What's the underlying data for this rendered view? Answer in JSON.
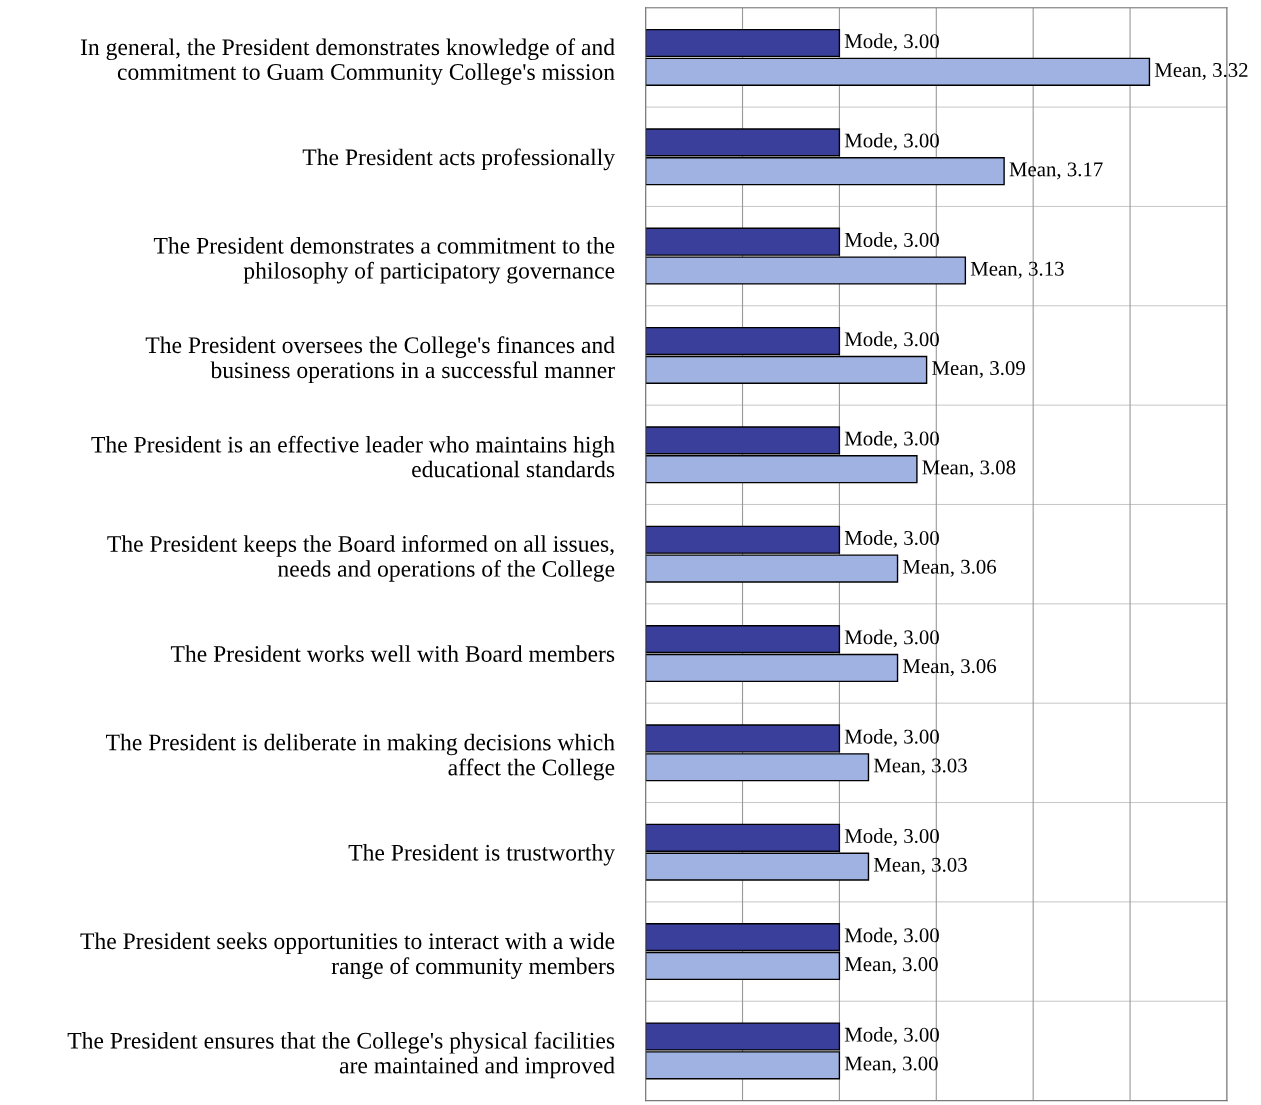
{
  "chart_data": {
    "type": "bar",
    "orientation": "horizontal",
    "categories": [
      "In general, the President demonstrates knowledge of and\ncommitment to Guam Community College's mission",
      "The President acts professionally",
      "The President demonstrates a commitment to the\nphilosophy of participatory governance",
      "The President oversees the College's finances and\nbusiness operations in a successful manner",
      "The President is an effective leader who maintains high\neducational standards",
      "The President keeps the Board informed on all issues,\nneeds and operations of the College",
      "The President works well with Board members",
      "The President is deliberate in making decisions which\naffect the College",
      "The President is trustworthy",
      "The President seeks opportunities to interact with a wide\nrange of community members",
      "The President ensures that the College's physical facilities\nare maintained and improved"
    ],
    "series": [
      {
        "color": "#3a3f9c",
        "values": [
          3.0,
          3.0,
          3.0,
          3.0,
          3.0,
          3.0,
          3.0,
          3.0,
          3.0,
          3.0,
          3.0
        ],
        "value_labels": [
          "Mode, 3.00",
          "Mode, 3.00",
          "Mode, 3.00",
          "Mode, 3.00",
          "Mode, 3.00",
          "Mode, 3.00",
          "Mode, 3.00",
          "Mode, 3.00",
          "Mode, 3.00",
          "Mode, 3.00",
          "Mode, 3.00"
        ]
      },
      {
        "color": "#9fb2e2",
        "values": [
          3.32,
          3.17,
          3.13,
          3.09,
          3.08,
          3.06,
          3.06,
          3.03,
          3.03,
          3.0,
          3.0
        ],
        "value_labels": [
          "Mean, 3.32",
          "Mean, 3.17",
          "Mean, 3.13",
          "Mean, 3.09",
          "Mean, 3.08",
          "Mean, 3.06",
          "Mean, 3.06",
          "Mean, 3.03",
          "Mean, 3.03",
          "Mean, 3.00",
          "Mean, 3.00"
        ]
      }
    ],
    "xlim": [
      2.8,
      3.4
    ],
    "xticks": [
      {
        "value": 2.8,
        "label": null
      },
      {
        "value": 2.9,
        "label": null
      },
      {
        "value": 3.0,
        "label": null
      },
      {
        "value": 3.1,
        "label": null
      },
      {
        "value": 3.2,
        "label": null
      },
      {
        "value": 3.3,
        "label": null
      },
      {
        "value": 3.4,
        "label": null
      }
    ],
    "grid": "x",
    "tick_labels": "y"
  }
}
